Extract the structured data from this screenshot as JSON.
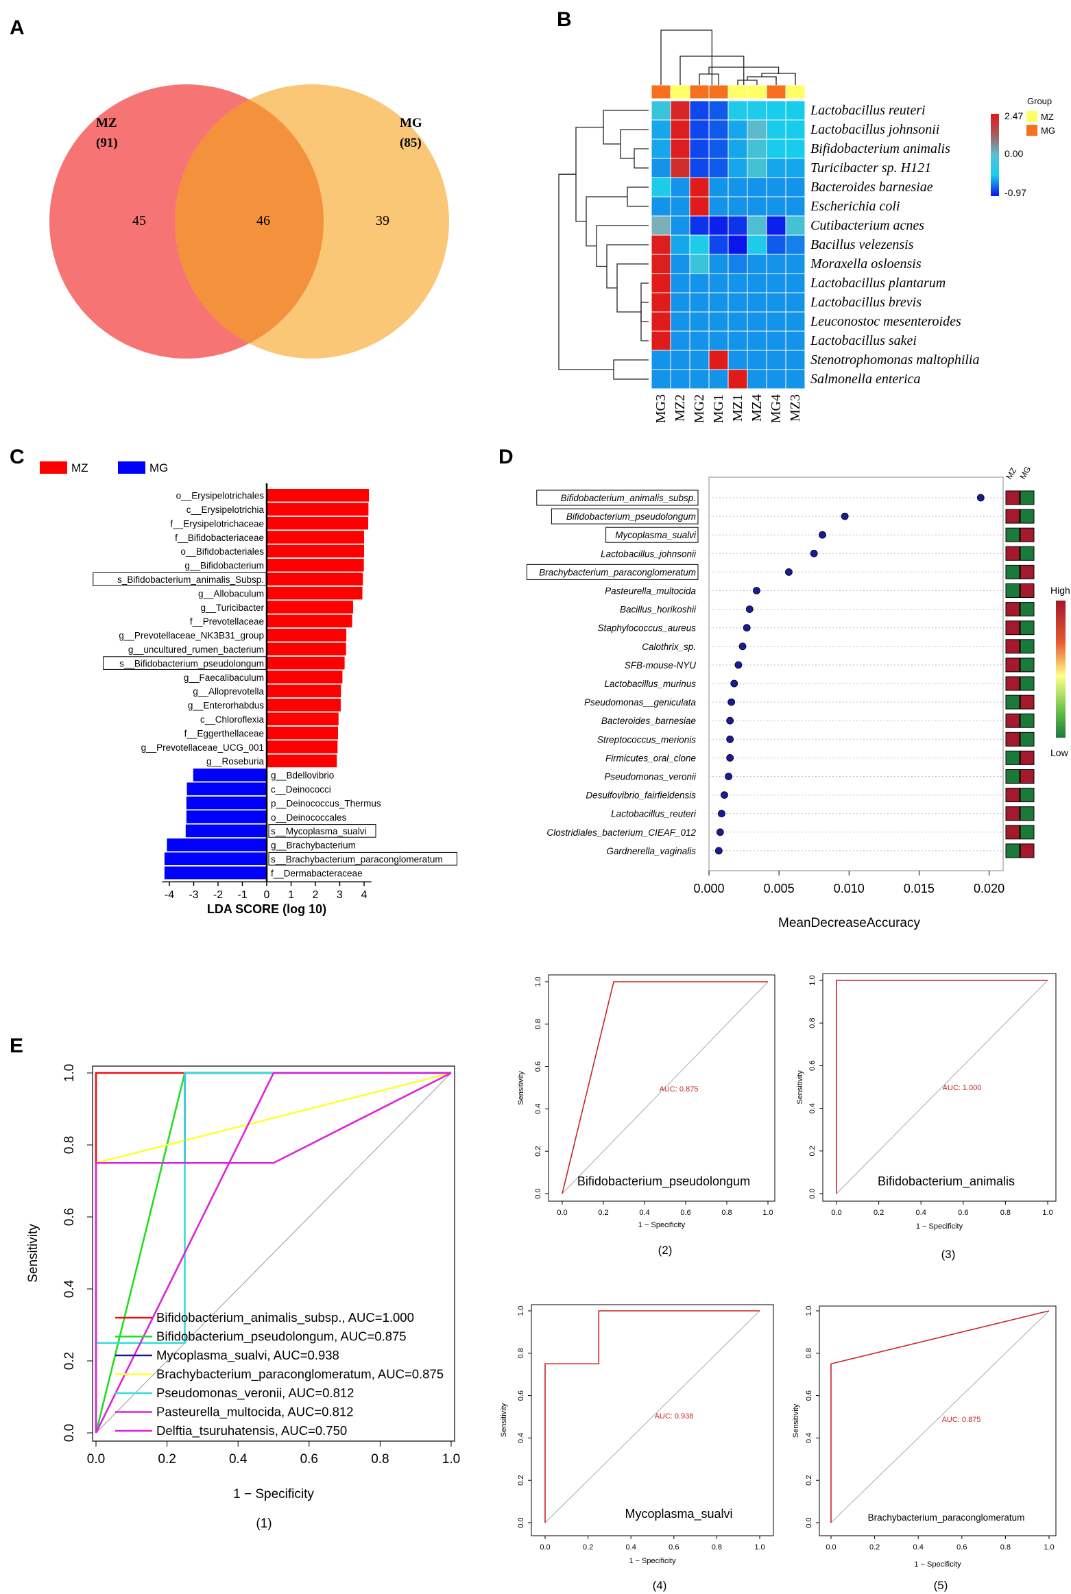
{
  "panel_labels": {
    "A": "A",
    "B": "B",
    "C": "C",
    "D": "D",
    "E": "E"
  },
  "chart_data": [
    {
      "type": "venn",
      "panel": "A",
      "sets": [
        {
          "name": "MZ",
          "total": "(91)",
          "unique": "45",
          "color": "#f77474"
        },
        {
          "name": "MG",
          "total": "(85)",
          "unique": "39",
          "color": "#f9c46e"
        }
      ],
      "overlap": "46",
      "overlap_color": "#f4913d"
    },
    {
      "type": "heatmap",
      "panel": "B",
      "columns": [
        "MG3",
        "MZ2",
        "MG2",
        "MG1",
        "MZ1",
        "MZ4",
        "MG4",
        "MZ3"
      ],
      "column_groups": [
        "MG",
        "MZ",
        "MG",
        "MG",
        "MZ",
        "MZ",
        "MG",
        "MZ"
      ],
      "rows": [
        "Lactobacillus reuteri",
        "Lactobacillus johnsonii",
        "Bifidobacterium animalis",
        "Turicibacter sp. H121",
        "Bacteroides barnesiae",
        "Escherichia coli",
        "Cutibacterium acnes",
        "Bacillus velezensis",
        "Moraxella osloensis",
        "Lactobacillus plantarum",
        "Lactobacillus brevis",
        "Leuconostoc mesenteroides",
        "Lactobacillus sakei",
        "Stenotrophomonas maltophilia",
        "Salmonella enterica"
      ],
      "values": [
        [
          0.3,
          2.3,
          -0.7,
          -0.6,
          0.05,
          0.05,
          0.0,
          0.0
        ],
        [
          -0.2,
          2.4,
          -0.7,
          -0.6,
          -0.2,
          0.6,
          0.0,
          0.0
        ],
        [
          -0.2,
          2.4,
          -0.7,
          -0.6,
          -0.2,
          0.4,
          0.0,
          0.0
        ],
        [
          -0.3,
          2.2,
          -0.7,
          -0.6,
          -0.2,
          0.4,
          -0.2,
          -0.2
        ],
        [
          0.05,
          -0.3,
          2.45,
          -0.3,
          -0.3,
          -0.3,
          -0.3,
          -0.3
        ],
        [
          -0.3,
          -0.3,
          2.45,
          -0.3,
          -0.3,
          -0.3,
          -0.3,
          -0.3
        ],
        [
          0.9,
          -0.3,
          -0.8,
          -0.9,
          -0.8,
          0.5,
          -0.9,
          0.4
        ],
        [
          2.4,
          -0.2,
          0.05,
          -0.7,
          -0.97,
          0.05,
          -0.6,
          -0.4
        ],
        [
          2.4,
          -0.3,
          0.3,
          -0.3,
          -0.4,
          -0.3,
          -0.3,
          -0.3
        ],
        [
          2.45,
          -0.3,
          -0.3,
          -0.3,
          -0.3,
          -0.3,
          -0.3,
          -0.3
        ],
        [
          2.45,
          -0.3,
          -0.3,
          -0.3,
          -0.3,
          -0.3,
          -0.3,
          -0.3
        ],
        [
          2.45,
          -0.3,
          -0.3,
          -0.3,
          -0.3,
          -0.3,
          -0.3,
          -0.3
        ],
        [
          2.45,
          -0.3,
          -0.3,
          -0.3,
          -0.3,
          -0.3,
          -0.3,
          -0.3
        ],
        [
          -0.3,
          -0.3,
          -0.3,
          2.45,
          -0.3,
          -0.3,
          -0.3,
          -0.3
        ],
        [
          -0.3,
          -0.3,
          -0.3,
          -0.3,
          2.45,
          -0.3,
          -0.3,
          -0.3
        ]
      ],
      "scale": {
        "max": "2.47",
        "mid": "0.00",
        "min": "-0.97",
        "max_v": 2.47,
        "min_v": -0.97
      },
      "legend_title": "Group",
      "group_legend": [
        {
          "name": "MZ",
          "color": "#ffff66"
        },
        {
          "name": "MG",
          "color": "#f7701e"
        }
      ]
    },
    {
      "type": "bar",
      "panel": "C",
      "orientation": "horizontal",
      "legend": [
        {
          "name": "MZ",
          "color": "#ff0000"
        },
        {
          "name": "MG",
          "color": "#0000ff"
        }
      ],
      "xlabel": "LDA SCORE (log 10)",
      "xlim": [
        -4.3,
        4.3
      ],
      "xticks": [
        "-4",
        "-3",
        "-2",
        "-1",
        "0",
        "1",
        "2",
        "3",
        "4"
      ],
      "categories": [
        "o__Erysipelotrichales",
        "c__Erysipelotrichia",
        "f__Erysipelotrichaceae",
        "f__Bifidobacteriaceae",
        "o__Bifidobacteriales",
        "g__Bifidobacterium",
        "s_Bifidobacterium_animalis_Subsp.",
        "g__Allobaculum",
        "g__Turicibacter",
        "f__Prevotellaceae",
        "g__Prevotellaceae_NK3B31_group",
        "g__uncultured_rumen_bacterium",
        "s__Bifidobacterium_pseudolongum",
        "g__Faecalibaculum",
        "g__Alloprevotella",
        "g__Enterorhabdus",
        "c__Chloroflexia",
        "f__Eggerthellaceae",
        "g__Prevotellaceae_UCG_001",
        "g__Roseburia",
        "g__Bdellovibrio",
        "c__Deinococci",
        "p__Deinococcus_Thermus",
        "o__Deinococcales",
        "s__Mycoplasma_sualvi",
        "g__Brachybacterium",
        "s__Brachybacterium_paraconglomeratum",
        "f__Dermabacteraceae"
      ],
      "values": [
        4.2,
        4.18,
        4.17,
        4.0,
        4.0,
        3.99,
        3.95,
        3.93,
        3.55,
        3.51,
        3.27,
        3.26,
        3.2,
        3.11,
        3.05,
        3.04,
        2.95,
        2.93,
        2.91,
        2.88,
        -3.02,
        -3.28,
        -3.3,
        -3.3,
        -3.33,
        -4.1,
        -4.2,
        -4.2
      ],
      "boxed": [
        "s_Bifidobacterium_animalis_Subsp.",
        "s__Bifidobacterium_pseudolongum",
        "s__Mycoplasma_sualvi",
        "s__Brachybacterium_paraconglomeratum"
      ]
    },
    {
      "type": "scatter",
      "panel": "D",
      "xlabel": "MeanDecreaseAccuracy",
      "xticks": [
        "0.000",
        "0.005",
        "0.010",
        "0.015",
        "0.020"
      ],
      "xlim": [
        0,
        0.021
      ],
      "categories": [
        "Bifidobacterium_animalis_subsp.",
        "Bifidobacterium_pseudolongum",
        "Mycoplasma_sualvi",
        "Lactobacillus_johnsonii",
        "Brachybacterium_paraconglomeratum",
        "Pasteurella_multocida",
        "Bacillus_horikoshii",
        "Staphylococcus_aureus",
        "Calothrix_sp.",
        "SFB-mouse-NYU",
        "Lactobacillus_murinus",
        "Pseudomonas__geniculata",
        "Bacteroides_barnesiae",
        "Streptococcus_merionis",
        "Firmicutes_oral_clone",
        "Pseudomonas_veronii",
        "Desulfovibrio_fairfieldensis",
        "Lactobacillus_reuteri",
        "Clostridiales_bacterium_CIEAF_012",
        "Gardnerella_vaginalis"
      ],
      "values": [
        0.0194,
        0.0097,
        0.0081,
        0.0075,
        0.0057,
        0.0034,
        0.0029,
        0.0027,
        0.0024,
        0.0021,
        0.0018,
        0.0016,
        0.0015,
        0.0015,
        0.0015,
        0.0014,
        0.0011,
        0.0009,
        0.0008,
        0.0007
      ],
      "boxed": [
        "Bifidobacterium_animalis_subsp.",
        "Bifidobacterium_pseudolongum",
        "Mycoplasma_sualvi",
        "Brachybacterium_paraconglomeratum"
      ],
      "group_columns": [
        "MZ",
        "MG"
      ],
      "group_high": [
        "MZ",
        "MZ",
        "MG",
        "MZ",
        "MG",
        "MG",
        "MZ",
        "MZ",
        "MZ",
        "MZ",
        "MZ",
        "MG",
        "MZ",
        "MZ",
        "MG",
        "MG",
        "MZ",
        "MZ",
        "MZ",
        "MG"
      ],
      "scale_high": "High",
      "scale_low": "Low"
    },
    {
      "type": "line",
      "panel": "E(1)",
      "caption": "(1)",
      "xlabel": "1 − Specificity",
      "ylabel": "Sensitivity",
      "xticks": [
        "0.0",
        "0.2",
        "0.4",
        "0.6",
        "0.8",
        "1.0"
      ],
      "yticks": [
        "0.0",
        "0.2",
        "0.4",
        "0.6",
        "0.8",
        "1.0"
      ],
      "xlim": [
        0,
        1
      ],
      "ylim": [
        0,
        1
      ],
      "series": [
        {
          "name": "Bifidobacterium_animalis_subsp., AUC=1.000",
          "color": "#ee1111",
          "x": [
            0,
            0,
            1
          ],
          "y": [
            0,
            1,
            1
          ]
        },
        {
          "name": "Bifidobacterium_pseudolongum, AUC=0.875",
          "color": "#22dd22",
          "x": [
            0,
            0.25,
            1
          ],
          "y": [
            0,
            1,
            1
          ]
        },
        {
          "name": "Mycoplasma_sualvi, AUC=0.938",
          "color": "#1a1a8c",
          "x": [
            0,
            0,
            0.25,
            0.25,
            1
          ],
          "y": [
            0,
            0.75,
            0.75,
            1,
            1
          ]
        },
        {
          "name": "Brachybacterium_paraconglomeratum, AUC=0.875",
          "color": "#ffff33",
          "x": [
            0,
            0,
            1
          ],
          "y": [
            0,
            0.75,
            1
          ]
        },
        {
          "name": "Pseudomonas_veronii, AUC=0.812",
          "color": "#33dddd",
          "x": [
            0,
            0,
            0.25,
            0.25,
            1
          ],
          "y": [
            0,
            0.25,
            0.25,
            1,
            1
          ]
        },
        {
          "name": "Pasteurella_multocida, AUC=0.812",
          "color": "#dd22dd",
          "x": [
            0,
            0,
            0.5,
            1
          ],
          "y": [
            0,
            0.75,
            0.75,
            1
          ]
        },
        {
          "name": "Delftia_tsuruhatensis, AUC=0.750",
          "color": "#dd22dd",
          "x": [
            0,
            0.5,
            1
          ],
          "y": [
            0,
            1,
            1
          ]
        }
      ]
    },
    {
      "type": "line",
      "panel": "E(2)",
      "caption": "(2)",
      "title": "Bifidobacterium_pseudolongum",
      "auc": "AUC: 0.875",
      "xlabel": "1 − Specificity",
      "ylabel": "Sensitivity",
      "xticks": [
        "0.0",
        "0.2",
        "0.4",
        "0.6",
        "0.8",
        "1.0"
      ],
      "yticks": [
        "0.0",
        "0.2",
        "0.4",
        "0.6",
        "0.8",
        "1.0"
      ],
      "x": [
        0,
        0.25,
        1
      ],
      "y": [
        0,
        1,
        1
      ]
    },
    {
      "type": "line",
      "panel": "E(3)",
      "caption": "(3)",
      "title": "Bifidobacterium_animalis",
      "auc": "AUC: 1.000",
      "xlabel": "1 − Specificity",
      "ylabel": "Sensitivity",
      "xticks": [
        "0.0",
        "0.2",
        "0.4",
        "0.6",
        "0.8",
        "1.0"
      ],
      "yticks": [
        "0.0",
        "0.2",
        "0.4",
        "0.6",
        "0.8",
        "1.0"
      ],
      "x": [
        0,
        0,
        1
      ],
      "y": [
        0,
        1,
        1
      ]
    },
    {
      "type": "line",
      "panel": "E(4)",
      "caption": "(4)",
      "title": "Mycoplasma_sualvi",
      "auc": "AUC: 0.938",
      "xlabel": "1 − Specificity",
      "ylabel": "Sensitivity",
      "xticks": [
        "0.0",
        "0.2",
        "0.4",
        "0.6",
        "0.8",
        "1.0"
      ],
      "yticks": [
        "0.0",
        "0.2",
        "0.4",
        "0.6",
        "0.8",
        "1.0"
      ],
      "x": [
        0,
        0,
        0.25,
        0.25,
        1
      ],
      "y": [
        0,
        0.75,
        0.75,
        1,
        1
      ]
    },
    {
      "type": "line",
      "panel": "E(5)",
      "caption": "(5)",
      "title": "Brachybacterium_paraconglomeratum",
      "auc": "AUC: 0.875",
      "xlabel": "1 − Specificity",
      "ylabel": "Sensitivity",
      "xticks": [
        "0.0",
        "0.2",
        "0.4",
        "0.6",
        "0.8",
        "1.0"
      ],
      "yticks": [
        "0.0",
        "0.2",
        "0.4",
        "0.6",
        "0.8",
        "1.0"
      ],
      "x": [
        0,
        0,
        1
      ],
      "y": [
        0,
        0.75,
        1
      ]
    }
  ]
}
